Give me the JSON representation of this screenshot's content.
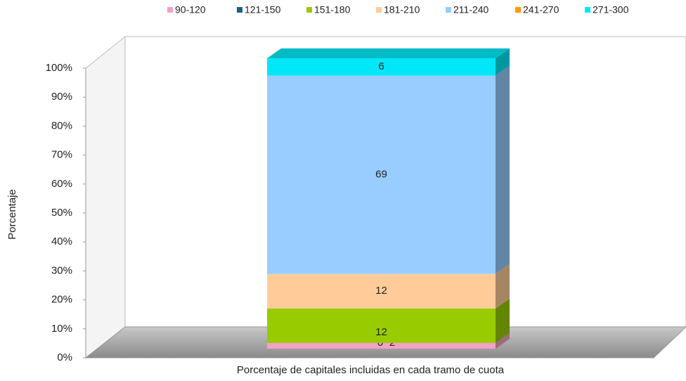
{
  "chart_data": {
    "type": "bar3d_stacked",
    "xlabel": "Porcentaje de capitales incluidas en cada tramo de cuota",
    "ylabel": "Porcentaje",
    "series": [
      {
        "name": "90-120",
        "color": "#f4a0c4",
        "values": [
          2
        ]
      },
      {
        "name": "121-150",
        "color": "#1b5e8c",
        "values": [
          0
        ]
      },
      {
        "name": "151-180",
        "color": "#99cc00",
        "values": [
          12
        ]
      },
      {
        "name": "181-210",
        "color": "#ffcc99",
        "values": [
          12
        ]
      },
      {
        "name": "211-240",
        "color": "#99ccff",
        "values": [
          69
        ]
      },
      {
        "name": "241-270",
        "color": "#ff9900",
        "values": [
          0
        ]
      },
      {
        "name": "271-300",
        "color": "#00e8f8",
        "values": [
          6
        ]
      }
    ],
    "ylim": [
      0,
      100
    ],
    "yticks": [
      {
        "value": 0,
        "label": "0%"
      },
      {
        "value": 10,
        "label": "10%"
      },
      {
        "value": 20,
        "label": "20%"
      },
      {
        "value": 30,
        "label": "30%"
      },
      {
        "value": 40,
        "label": "40%"
      },
      {
        "value": 50,
        "label": "50%"
      },
      {
        "value": 60,
        "label": "60%"
      },
      {
        "value": 70,
        "label": "70%"
      },
      {
        "value": 80,
        "label": "80%"
      },
      {
        "value": 90,
        "label": "90%"
      },
      {
        "value": 100,
        "label": "100%"
      }
    ],
    "legend": "top"
  }
}
